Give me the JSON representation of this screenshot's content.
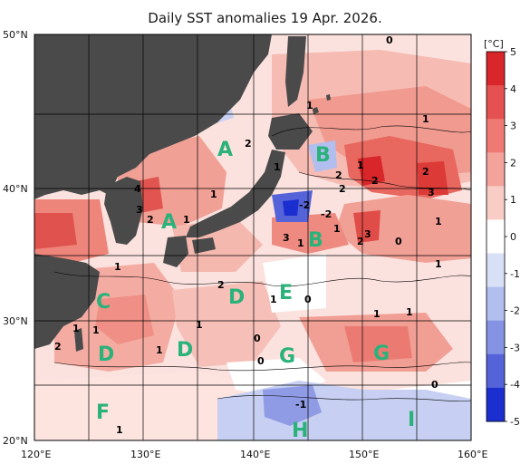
{
  "title": "Daily SST anomalies 19 Apr. 2026.",
  "colorbar": {
    "unit": "[°C]",
    "ticks": [
      "5",
      "4",
      "3",
      "2",
      "1",
      "0",
      "-1",
      "-2",
      "-3",
      "-4",
      "-5"
    ],
    "colors": [
      "#d8262a",
      "#e55150",
      "#ef7a73",
      "#f4a39b",
      "#f8cdc6",
      "#ffffff",
      "#d8e0f6",
      "#b1beee",
      "#8493e3",
      "#5563d8",
      "#1b2ed0"
    ]
  },
  "axes": {
    "lat_labels": [
      "50°N",
      "40°N",
      "30°N",
      "20°N"
    ],
    "lon_labels": [
      "120°E",
      "130°E",
      "140°E",
      "150°E",
      "160°E"
    ]
  },
  "regions": [
    "A",
    "A",
    "B",
    "B",
    "C",
    "D",
    "D",
    "D",
    "E",
    "F",
    "G",
    "G",
    "H",
    "I"
  ],
  "anomaly_labels": [
    "0",
    "1",
    "2",
    "1",
    "1",
    "4",
    "3",
    "2",
    "1",
    "2",
    "2",
    "1",
    "2",
    "2",
    "3",
    "1",
    "-2",
    "-2",
    "3",
    "1",
    "1",
    "2",
    "3",
    "0",
    "1",
    "1",
    "1",
    "2",
    "1",
    "0",
    "1",
    "1",
    "1",
    "1",
    "1",
    "2",
    "0",
    "1",
    "0",
    "-1",
    "0",
    "1"
  ],
  "colors": {
    "land": "#4a4a4a",
    "border": "#000000",
    "region_text": "#2bb27a"
  }
}
